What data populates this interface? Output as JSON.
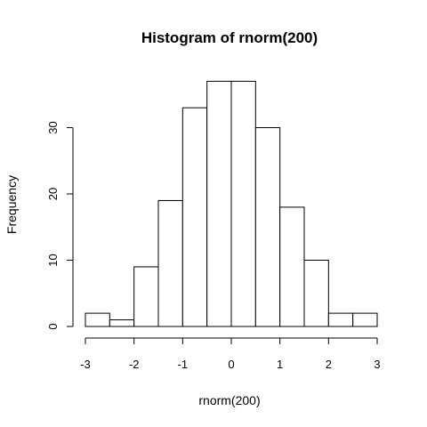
{
  "chart_data": {
    "type": "bar",
    "title": "Histogram of rnorm(200)",
    "xlabel": "rnorm(200)",
    "ylabel": "Frequency",
    "bin_edges": [
      -3,
      -2.5,
      -2,
      -1.5,
      -1,
      -0.5,
      0,
      0.5,
      1,
      1.5,
      2,
      2.5,
      3
    ],
    "values": [
      2,
      1,
      9,
      19,
      33,
      37,
      37,
      30,
      18,
      10,
      2,
      2
    ],
    "xlim": [
      -3,
      3
    ],
    "ylim": [
      0,
      40
    ],
    "x_ticks": [
      -3,
      -2,
      -1,
      0,
      1,
      2,
      3
    ],
    "x_tick_labels": [
      "-3",
      "-2",
      "-1",
      "0",
      "1",
      "2",
      "3"
    ],
    "y_ticks": [
      0,
      10,
      20,
      30
    ],
    "y_tick_labels": [
      "0",
      "10",
      "20",
      "30"
    ],
    "grid": false,
    "colors": {
      "bar_fill": "#ffffff",
      "bar_stroke": "#000000"
    }
  }
}
